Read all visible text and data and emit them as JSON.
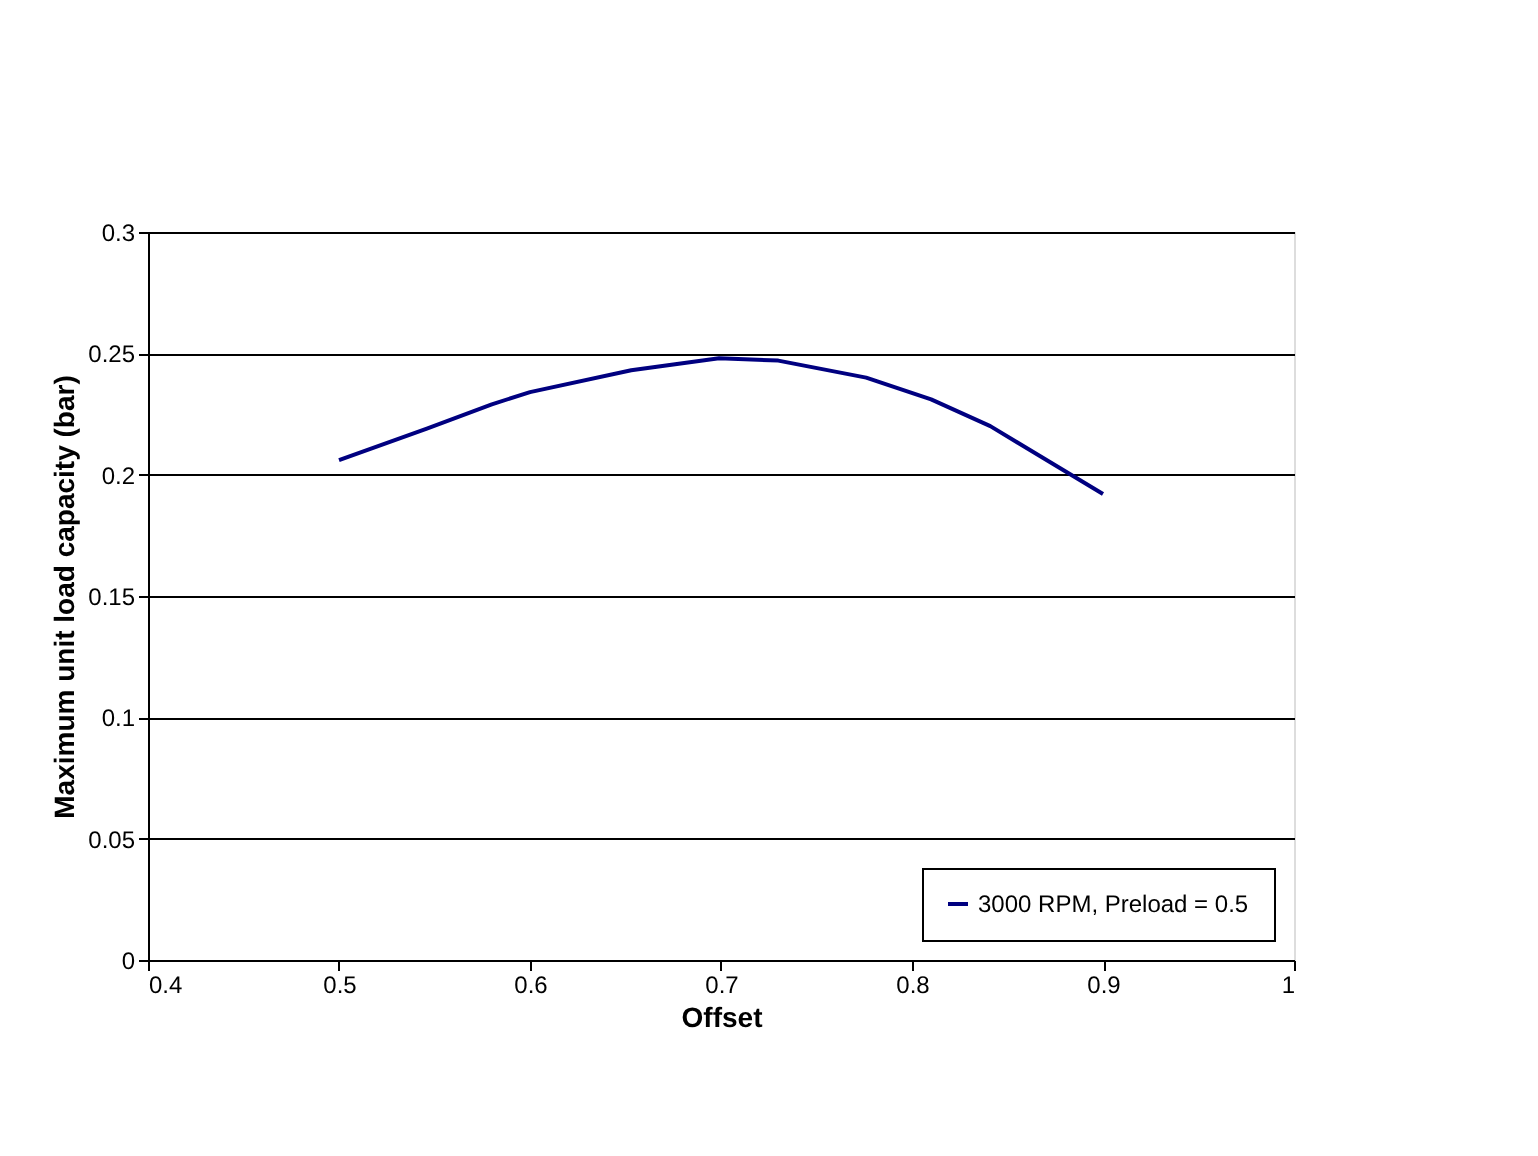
{
  "chart_data": {
    "type": "line",
    "xlabel": "Offset",
    "ylabel": "Maximum unit load capacity (bar)",
    "xlim": [
      0.4,
      1
    ],
    "xticks": [
      0.4,
      0.5,
      0.6,
      0.7,
      0.8,
      0.9,
      1
    ],
    "ylim": [
      0,
      0.3
    ],
    "yticks": [
      0,
      0.05,
      0.1,
      0.15,
      0.2,
      0.25,
      0.3
    ],
    "grid": "y",
    "legend": "bottom right",
    "marker": "none",
    "line_style": "solid",
    "series": [
      {
        "name": "3000 RPM, Preload = 0.5",
        "color": "#000080",
        "x": [
          0.5,
          0.546,
          0.58,
          0.6,
          0.653,
          0.699,
          0.73,
          0.776,
          0.81,
          0.841,
          0.9
        ],
        "values": [
          0.206,
          0.219,
          0.229,
          0.234,
          0.243,
          0.248,
          0.247,
          0.24,
          0.231,
          0.22,
          0.192
        ]
      }
    ]
  }
}
